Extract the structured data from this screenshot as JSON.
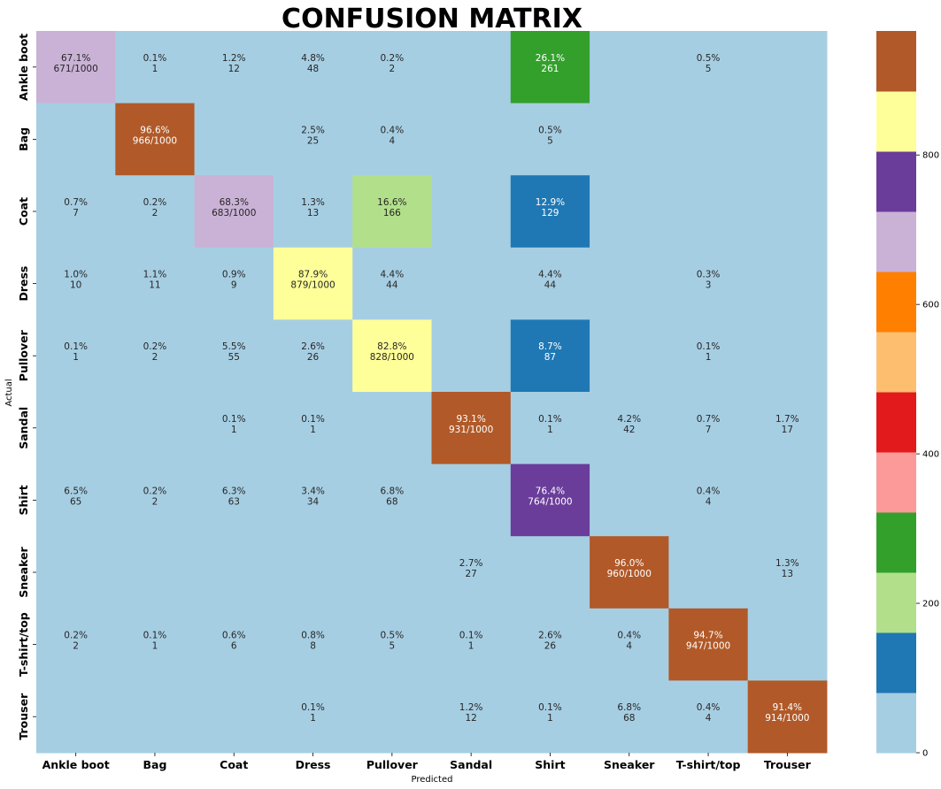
{
  "chart_data": {
    "type": "heatmap",
    "title": "CONFUSION MATRIX",
    "xlabel": "Predicted",
    "ylabel": "Actual",
    "categories": [
      "Ankle boot",
      "Bag",
      "Coat",
      "Dress",
      "Pullover",
      "Sandal",
      "Shirt",
      "Sneaker",
      "T-shirt/top",
      "Trouser"
    ],
    "matrix": [
      [
        671,
        1,
        12,
        48,
        2,
        0,
        261,
        0,
        5,
        0
      ],
      [
        0,
        966,
        0,
        25,
        4,
        0,
        5,
        0,
        0,
        0
      ],
      [
        7,
        2,
        683,
        13,
        166,
        0,
        129,
        0,
        0,
        0
      ],
      [
        10,
        11,
        9,
        879,
        44,
        0,
        44,
        0,
        3,
        0
      ],
      [
        1,
        2,
        55,
        26,
        828,
        0,
        87,
        0,
        1,
        0
      ],
      [
        0,
        0,
        1,
        1,
        0,
        931,
        1,
        42,
        7,
        17
      ],
      [
        65,
        2,
        63,
        34,
        68,
        0,
        764,
        0,
        4,
        0
      ],
      [
        0,
        0,
        0,
        0,
        0,
        27,
        0,
        960,
        0,
        13
      ],
      [
        2,
        1,
        6,
        8,
        5,
        1,
        26,
        4,
        947,
        0
      ],
      [
        0,
        0,
        0,
        1,
        0,
        12,
        1,
        68,
        4,
        914
      ]
    ],
    "row_total": 1000,
    "vmin": 0,
    "vmax": 966,
    "colorscale": [
      "#a6cee3",
      "#1f78b4",
      "#b2df8a",
      "#33a02c",
      "#fb9a99",
      "#e31a1c",
      "#fdbf6f",
      "#ff7f00",
      "#cab2d6",
      "#6a3d9a",
      "#ffff99",
      "#b15928"
    ],
    "colorbar_ticks": [
      "0",
      "200",
      "400",
      "600",
      "800"
    ],
    "colorbar_tick_values": [
      0,
      200,
      400,
      600,
      800
    ]
  }
}
